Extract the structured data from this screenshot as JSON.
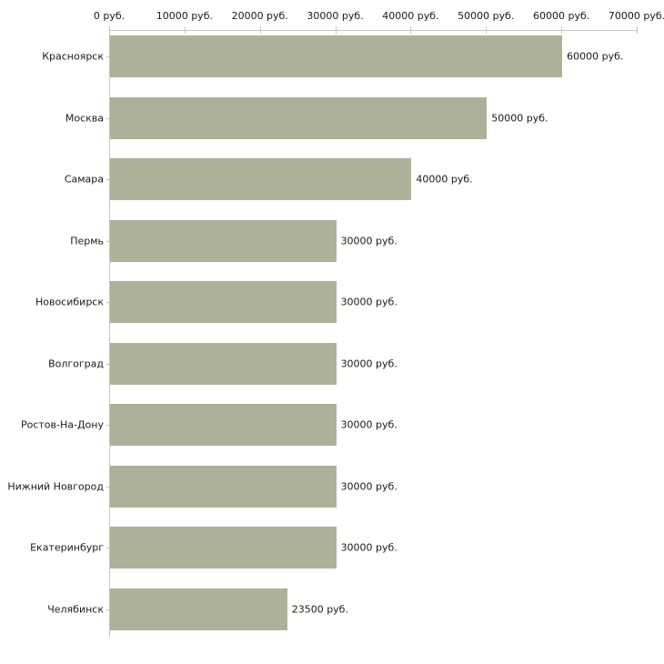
{
  "chart_data": {
    "type": "bar",
    "orientation": "horizontal",
    "title": "",
    "xlabel": "",
    "ylabel": "",
    "grid": false,
    "legend": false,
    "categories": [
      "Красноярск",
      "Москва",
      "Самара",
      "Пермь",
      "Новосибирск",
      "Волгоград",
      "Ростов-На-Дону",
      "Нижний Новгород",
      "Екатеринбург",
      "Челябинск"
    ],
    "values": [
      60000,
      50000,
      40000,
      30000,
      30000,
      30000,
      30000,
      30000,
      30000,
      23500
    ],
    "bar_value_labels": [
      "60000 руб.",
      "50000 руб.",
      "40000 руб.",
      "30000 руб.",
      "30000 руб.",
      "30000 руб.",
      "30000 руб.",
      "30000 руб.",
      "30000 руб.",
      "23500 руб."
    ],
    "x_axis": {
      "position": "top",
      "min": 0,
      "max": 70000,
      "ticks": [
        0,
        10000,
        20000,
        30000,
        40000,
        50000,
        60000,
        70000
      ],
      "tick_labels": [
        "0 руб.",
        "10000 руб.",
        "20000 руб.",
        "30000 руб.",
        "40000 руб.",
        "50000 руб.",
        "60000 руб.",
        "70000 руб."
      ]
    },
    "colors": {
      "bar_fill": "#adb199",
      "axis_line": "#c6c6c6",
      "tick_mark": "#cbcba0",
      "text": "#1a1a1a",
      "background": "#ffffff"
    }
  }
}
